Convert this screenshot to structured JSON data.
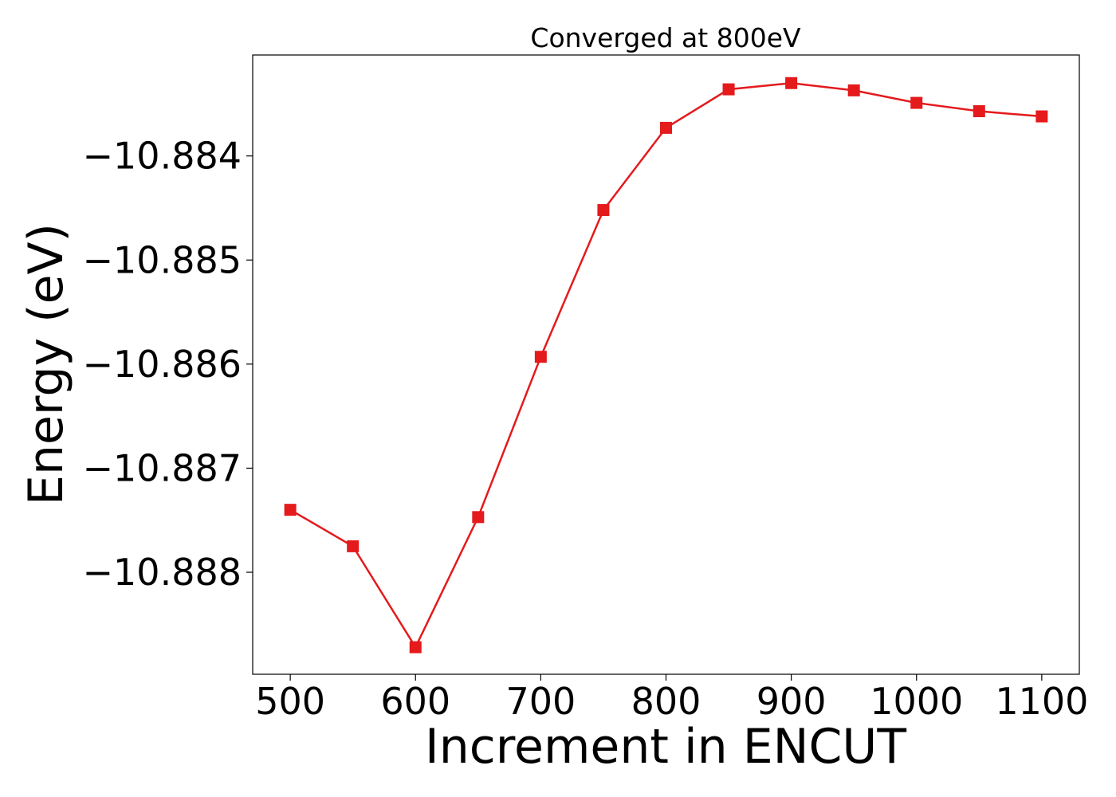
{
  "chart_data": {
    "type": "line",
    "title": "Converged at 800eV",
    "xlabel": "Increment in ENCUT",
    "ylabel": "Energy (eV)",
    "xlim": [
      470,
      1130
    ],
    "ylim": [
      -10.88898,
      -10.88303
    ],
    "xticks": [
      500,
      600,
      700,
      800,
      900,
      1000,
      1100
    ],
    "xtick_labels": [
      "500",
      "600",
      "700",
      "800",
      "900",
      "1000",
      "1100"
    ],
    "yticks": [
      -10.888,
      -10.887,
      -10.886,
      -10.885,
      -10.884
    ],
    "ytick_labels": [
      "−10.888",
      "−10.887",
      "−10.886",
      "−10.885",
      "−10.884"
    ],
    "grid": false,
    "marker": "square",
    "color": "#e41a1c",
    "series": [
      {
        "x": [
          500,
          550,
          600,
          650,
          700,
          750,
          800,
          850,
          900,
          950,
          1000,
          1050,
          1100
        ],
        "y": [
          -10.8874,
          -10.88775,
          -10.88872,
          -10.88747,
          -10.88593,
          -10.88452,
          -10.88373,
          -10.88336,
          -10.8833,
          -10.88337,
          -10.88349,
          -10.88357,
          -10.88362
        ]
      }
    ]
  }
}
